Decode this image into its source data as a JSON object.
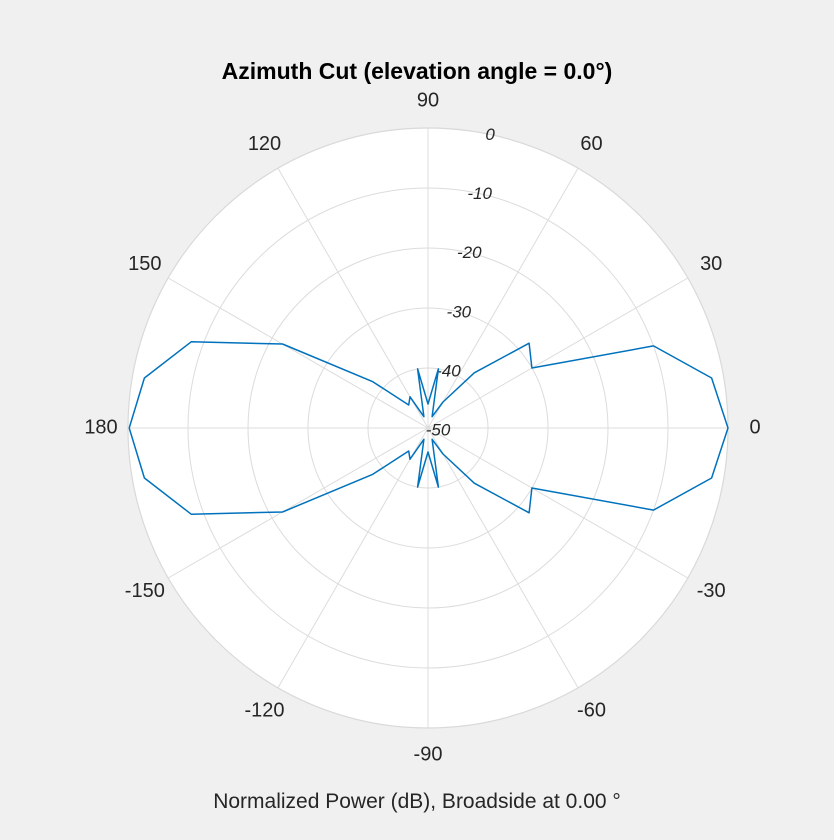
{
  "chart_data": {
    "type": "polar",
    "title": "Azimuth Cut (elevation angle = 0.0°)",
    "xlabel": "Normalized Power (dB), Broadside at 0.00 °",
    "radial_axis": {
      "ticks": [
        -50,
        -40,
        -30,
        -20,
        -10,
        0
      ],
      "range": [
        -50,
        0
      ],
      "unit": "dB"
    },
    "angular_axis": {
      "ticks": [
        0,
        30,
        60,
        90,
        120,
        150,
        180,
        -150,
        -120,
        -90,
        -60,
        -30
      ],
      "unit": "degrees"
    },
    "grid": true,
    "series": [
      {
        "color": "#0072bd",
        "theta": [
          -180,
          -170,
          -160,
          -150,
          -140,
          -130,
          -120,
          -110,
          -100,
          -90,
          -80,
          -70,
          -60,
          -50,
          -40,
          -30,
          -20,
          -10,
          0,
          10,
          20,
          30,
          40,
          50,
          60,
          70,
          80,
          90,
          100,
          110,
          120,
          130,
          140,
          150,
          160,
          170,
          180
        ],
        "r": [
          -0.2,
          -2,
          -8,
          -22,
          -38,
          -45,
          -44,
          -48,
          -40,
          -46,
          -40,
          -48,
          -45,
          -38,
          -28,
          -30,
          -10,
          -2,
          0,
          -2,
          -10,
          -30,
          -28,
          -38,
          -45,
          -48,
          -40,
          -46,
          -40,
          -48,
          -44,
          -45,
          -38,
          -22,
          -8,
          -2,
          -0.2
        ]
      }
    ]
  }
}
